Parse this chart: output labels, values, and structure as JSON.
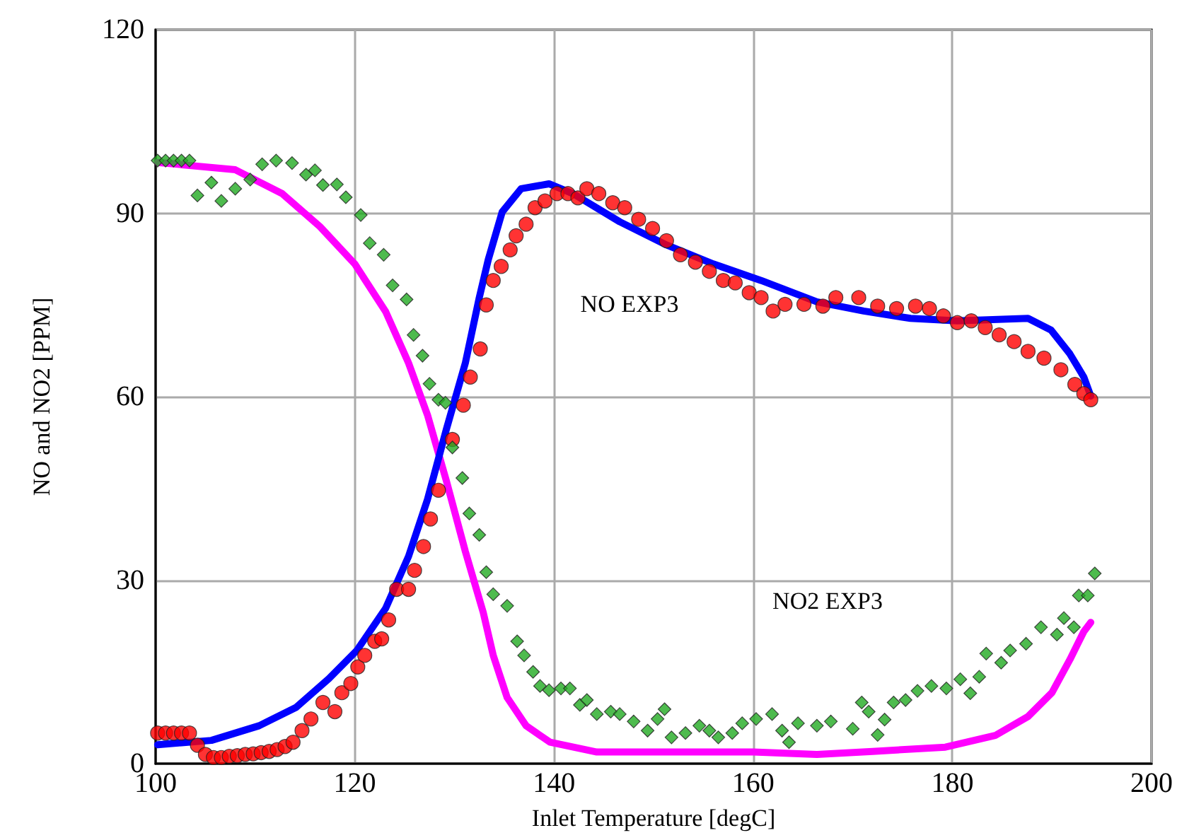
{
  "chart_data": {
    "type": "line",
    "xlabel": "Inlet Temperature [degC]",
    "ylabel": "NO and NO2 [PPM]",
    "xlim": [
      100,
      200
    ],
    "xticks": [
      100,
      120,
      140,
      160,
      180,
      200
    ],
    "ylim": [
      0,
      120
    ],
    "yticks": [
      0,
      30,
      60,
      90,
      120
    ],
    "grid": true,
    "annotations": [
      "NO EXP3",
      "NO2 EXP3"
    ],
    "series": [
      {
        "color": "#ff00ff",
        "marker": "none",
        "line_style": "solid",
        "x": [
          100.2,
          108,
          112.7,
          116.5,
          120,
          123.1,
          125.4,
          127.3,
          129.2,
          131.1,
          132.9,
          133.9,
          135.3,
          137.2,
          139.6,
          144.3,
          150,
          160,
          166.4,
          172,
          179.3,
          184.3,
          187.6,
          190,
          191.8,
          193.2,
          193.9
        ],
        "values": [
          98.3,
          97.1,
          93.2,
          87.8,
          81.7,
          73.9,
          65.5,
          57,
          46.2,
          34.7,
          24.7,
          17.7,
          10.8,
          6.2,
          3.5,
          1.9,
          1.9,
          1.9,
          1.5,
          2,
          2.7,
          4.6,
          7.7,
          11.6,
          17,
          21.6,
          23.1
        ]
      },
      {
        "color": "#0000ff",
        "marker": "none",
        "line_style": "solid",
        "x": [
          100.2,
          105.6,
          110.4,
          114.1,
          117.4,
          120.2,
          123.1,
          125.4,
          127.3,
          129.2,
          131.1,
          132.5,
          133.4,
          134.8,
          136.7,
          139.5,
          141.9,
          146.6,
          151.3,
          156,
          160.8,
          166.4,
          171.1,
          175.8,
          180.5,
          187.6,
          189.9,
          191.8,
          193.2,
          193.9
        ],
        "values": [
          3.1,
          3.8,
          6.2,
          9.2,
          13.9,
          18.5,
          25.4,
          33.9,
          43.2,
          54.7,
          65.5,
          76.2,
          82.4,
          90.2,
          94,
          94.8,
          93.2,
          88.6,
          84.8,
          81.7,
          79,
          75.5,
          74,
          72.8,
          72.4,
          72.8,
          70.9,
          67,
          63.2,
          60.1
        ]
      },
      {
        "type": "scatter",
        "color": "#ff0000",
        "marker": "circle",
        "x": [
          100.2,
          101,
          101.8,
          102.6,
          103.4,
          104.2,
          105,
          105.8,
          106.6,
          107.4,
          108.2,
          109,
          109.8,
          110.6,
          111.4,
          112.2,
          113,
          113.8,
          114.7,
          115.6,
          116.8,
          118,
          118.7,
          119.6,
          120.3,
          121,
          122,
          122.7,
          123.4,
          124.2,
          125.4,
          126,
          126.9,
          127.6,
          128.4,
          129.8,
          130.9,
          131.6,
          132.6,
          133.2,
          133.9,
          134.7,
          135.6,
          136.2,
          137.2,
          138.1,
          139.1,
          140.3,
          141.4,
          142.4,
          143.3,
          144.5,
          145.9,
          147.1,
          148.5,
          149.9,
          151.3,
          152.7,
          154.2,
          155.6,
          157,
          158.2,
          159.6,
          160.8,
          162,
          163.2,
          165.1,
          167,
          168.3,
          170.6,
          172.5,
          174.4,
          176.3,
          177.7,
          179.1,
          180.5,
          181.9,
          183.3,
          184.7,
          186.2,
          187.6,
          189.2,
          190.9,
          192.3,
          193.2,
          193.9
        ],
        "values": [
          5,
          5,
          5,
          5,
          5,
          3,
          1.5,
          1,
          1,
          1.2,
          1.3,
          1.5,
          1.6,
          1.8,
          2,
          2.3,
          2.8,
          3.5,
          5.4,
          7.3,
          10,
          8.5,
          11.6,
          13.1,
          15.8,
          17.7,
          20,
          20.4,
          23.5,
          28.5,
          28.5,
          31.6,
          35.5,
          40,
          44.7,
          53,
          58.6,
          63.2,
          67.8,
          75,
          79,
          81.3,
          84,
          86.3,
          88.2,
          90.9,
          92,
          93.2,
          93.2,
          92.5,
          94,
          93.2,
          91.7,
          90.9,
          89,
          87.5,
          85.5,
          83.2,
          82,
          80.5,
          79,
          78.6,
          77,
          76.2,
          74,
          75.1,
          75.1,
          74.8,
          76.2,
          76.2,
          74.8,
          74.4,
          74.8,
          74.4,
          73.2,
          72.1,
          72.4,
          71.3,
          70.1,
          69,
          67.4,
          66.3,
          64.4,
          62,
          60.5,
          59.5
        ]
      },
      {
        "type": "scatter",
        "color": "#22aa22",
        "marker": "diamond",
        "x": [
          100.2,
          101,
          101.8,
          102.6,
          103.4,
          104.2,
          105.6,
          106.6,
          108,
          109.5,
          110.7,
          112.1,
          113.7,
          115.1,
          116,
          116.8,
          118.2,
          119.1,
          120.6,
          121.5,
          122.9,
          123.8,
          125.2,
          125.9,
          126.8,
          127.5,
          128.4,
          129.1,
          129.8,
          130.8,
          131.5,
          132.5,
          133.2,
          133.9,
          135.3,
          136.3,
          137,
          137.9,
          138.6,
          139.5,
          140.7,
          141.6,
          142.6,
          143.3,
          144.3,
          145.7,
          146.6,
          148,
          149.4,
          150.4,
          151.1,
          151.8,
          153.2,
          154.6,
          155.6,
          156.5,
          157.9,
          158.9,
          160.3,
          161.9,
          162.9,
          163.6,
          164.5,
          166.4,
          167.8,
          170,
          170.9,
          171.6,
          172.5,
          173.2,
          174.1,
          175.3,
          176.5,
          177.9,
          179.4,
          180.8,
          181.8,
          182.7,
          183.4,
          184.9,
          185.8,
          187.4,
          188.9,
          190.5,
          191.2,
          192.2,
          192.7,
          193.6,
          194.3
        ],
        "values": [
          98.6,
          98.6,
          98.6,
          98.6,
          98.6,
          92.9,
          95,
          92,
          94,
          95.5,
          98,
          98.6,
          98.2,
          96.3,
          97,
          94.6,
          94.7,
          92.6,
          89.7,
          85.1,
          83.2,
          78.2,
          75.9,
          70.1,
          66.7,
          62.1,
          59.5,
          59,
          51.7,
          46.7,
          40.9,
          37.4,
          31.3,
          27.7,
          25.8,
          20,
          17.7,
          15,
          12.7,
          12,
          12.3,
          12.3,
          9.6,
          10.4,
          8.1,
          8.5,
          8.1,
          6.9,
          5.4,
          7.3,
          8.9,
          4.3,
          5,
          6.2,
          5.4,
          4.3,
          5,
          6.6,
          7.3,
          8.1,
          5.4,
          3.5,
          6.6,
          6.2,
          6.9,
          5.7,
          10,
          8.5,
          4.7,
          7.2,
          10,
          10.4,
          11.9,
          12.7,
          12.3,
          13.8,
          11.5,
          14.2,
          18,
          16.5,
          18.5,
          19.6,
          22.3,
          21.1,
          23.8,
          22.3,
          27.5,
          27.5,
          31.1
        ]
      }
    ]
  }
}
